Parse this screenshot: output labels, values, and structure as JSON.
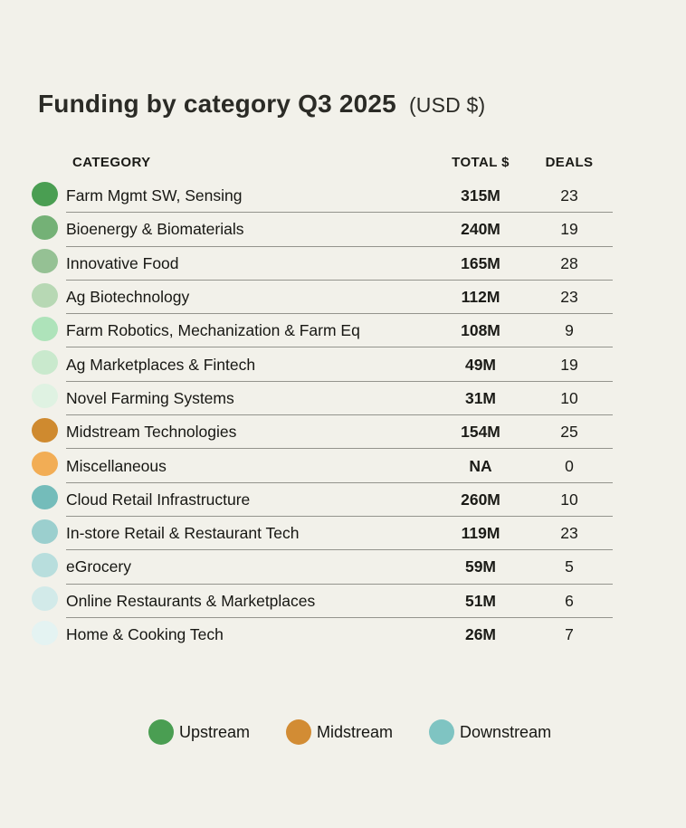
{
  "title": {
    "main": "Funding by category Q3 2025",
    "suffix": "(USD $)"
  },
  "table": {
    "headers": {
      "category": "CATEGORY",
      "total": "TOTAL $",
      "deals": "DEALS"
    },
    "rows": [
      {
        "category": "Farm Mgmt SW, Sensing",
        "total": "315M",
        "deals": "23",
        "dot_color": "#4a9e52",
        "stream": "Upstream"
      },
      {
        "category": "Bioenergy & Biomaterials",
        "total": "240M",
        "deals": "19",
        "dot_color": "#74b176",
        "stream": "Upstream"
      },
      {
        "category": "Innovative Food",
        "total": "165M",
        "deals": "28",
        "dot_color": "#95c194",
        "stream": "Upstream"
      },
      {
        "category": "Ag Biotechnology",
        "total": "112M",
        "deals": "23",
        "dot_color": "#b7d8b4",
        "stream": "Upstream"
      },
      {
        "category": "Farm Robotics, Mechanization & Farm Eq",
        "total": "108M",
        "deals": "9",
        "dot_color": "#aee3ba",
        "stream": "Upstream"
      },
      {
        "category": "Ag Marketplaces & Fintech",
        "total": "49M",
        "deals": "19",
        "dot_color": "#c9e9cd",
        "stream": "Upstream"
      },
      {
        "category": "Novel Farming Systems",
        "total": "31M",
        "deals": "10",
        "dot_color": "#dff2e2",
        "stream": "Upstream"
      },
      {
        "category": "Midstream Technologies",
        "total": "154M",
        "deals": "25",
        "dot_color": "#cf8a2f",
        "stream": "Midstream"
      },
      {
        "category": "Miscellaneous",
        "total": "NA",
        "deals": "0",
        "dot_color": "#f2ad55",
        "stream": "Midstream"
      },
      {
        "category": "Cloud Retail Infrastructure",
        "total": "260M",
        "deals": "10",
        "dot_color": "#74bcba",
        "stream": "Downstream"
      },
      {
        "category": "In-store Retail & Restaurant Tech",
        "total": "119M",
        "deals": "23",
        "dot_color": "#9bcfce",
        "stream": "Downstream"
      },
      {
        "category": "eGrocery",
        "total": "59M",
        "deals": "5",
        "dot_color": "#b8dedd",
        "stream": "Downstream"
      },
      {
        "category": "Online Restaurants & Marketplaces",
        "total": "51M",
        "deals": "6",
        "dot_color": "#d2eae9",
        "stream": "Downstream"
      },
      {
        "category": "Home & Cooking Tech",
        "total": "26M",
        "deals": "7",
        "dot_color": "#e4f3f2",
        "stream": "Downstream"
      }
    ]
  },
  "legend": {
    "items": [
      {
        "label": "Upstream",
        "color": "#4a9e52"
      },
      {
        "label": "Midstream",
        "color": "#d28c34"
      },
      {
        "label": "Downstream",
        "color": "#7fc4c2"
      }
    ]
  },
  "colors": {
    "background": "#f2f1ea",
    "text": "#1b1b17",
    "separator": "#94948d"
  },
  "chart_data": {
    "type": "table",
    "title": "Funding by category Q3 2025 (USD $)",
    "columns": [
      "CATEGORY",
      "TOTAL $",
      "DEALS"
    ],
    "rows": [
      {
        "category": "Farm Mgmt SW, Sensing",
        "total_usd_m": 315,
        "deals": 23,
        "stream": "Upstream"
      },
      {
        "category": "Bioenergy & Biomaterials",
        "total_usd_m": 240,
        "deals": 19,
        "stream": "Upstream"
      },
      {
        "category": "Innovative Food",
        "total_usd_m": 165,
        "deals": 28,
        "stream": "Upstream"
      },
      {
        "category": "Ag Biotechnology",
        "total_usd_m": 112,
        "deals": 23,
        "stream": "Upstream"
      },
      {
        "category": "Farm Robotics, Mechanization & Farm Eq",
        "total_usd_m": 108,
        "deals": 9,
        "stream": "Upstream"
      },
      {
        "category": "Ag Marketplaces & Fintech",
        "total_usd_m": 49,
        "deals": 19,
        "stream": "Upstream"
      },
      {
        "category": "Novel Farming Systems",
        "total_usd_m": 31,
        "deals": 10,
        "stream": "Upstream"
      },
      {
        "category": "Midstream Technologies",
        "total_usd_m": 154,
        "deals": 25,
        "stream": "Midstream"
      },
      {
        "category": "Miscellaneous",
        "total_usd_m": null,
        "deals": 0,
        "stream": "Midstream"
      },
      {
        "category": "Cloud Retail Infrastructure",
        "total_usd_m": 260,
        "deals": 10,
        "stream": "Downstream"
      },
      {
        "category": "In-store Retail & Restaurant Tech",
        "total_usd_m": 119,
        "deals": 23,
        "stream": "Downstream"
      },
      {
        "category": "eGrocery",
        "total_usd_m": 59,
        "deals": 5,
        "stream": "Downstream"
      },
      {
        "category": "Online Restaurants & Marketplaces",
        "total_usd_m": 51,
        "deals": 6,
        "stream": "Downstream"
      },
      {
        "category": "Home & Cooking Tech",
        "total_usd_m": 26,
        "deals": 7,
        "stream": "Downstream"
      }
    ],
    "legend_groups": [
      "Upstream",
      "Midstream",
      "Downstream"
    ]
  }
}
